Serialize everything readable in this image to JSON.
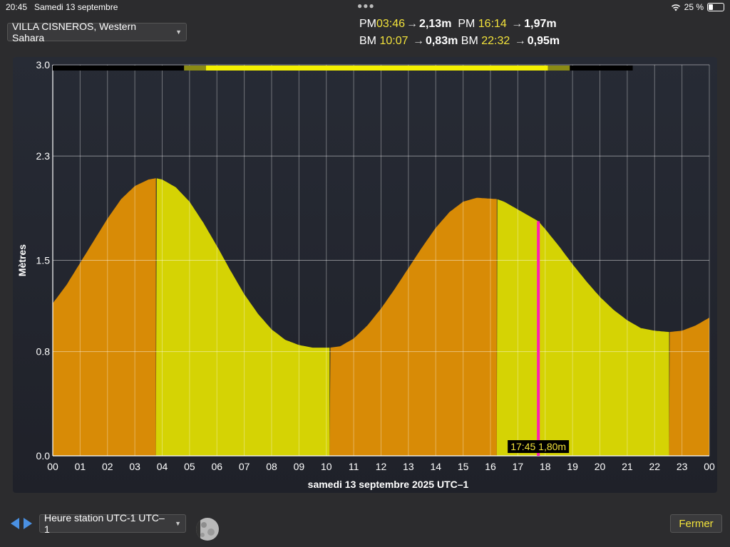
{
  "status_bar": {
    "time": "20:45",
    "date": "Samedi 13 septembre",
    "battery": "25 %",
    "battery_level": 0.25
  },
  "location": {
    "label": "VILLA CISNEROS, Western Sahara"
  },
  "tides": [
    [
      {
        "type": "PM",
        "time": "03:46",
        "height": "2,13m"
      },
      {
        "type": "PM",
        "time": "16:14",
        "height": "1,97m"
      }
    ],
    [
      {
        "type": "BM",
        "time": "10:07",
        "height": "0,83m"
      },
      {
        "type": "BM",
        "time": "22:32",
        "height": "0,95m"
      }
    ]
  ],
  "chart_data": {
    "type": "area",
    "title": "",
    "xlabel": "samedi 13 septembre 2025 UTC–1",
    "ylabel": "Mètres",
    "x_ticks": [
      "00",
      "01",
      "02",
      "03",
      "04",
      "05",
      "06",
      "07",
      "08",
      "09",
      "10",
      "11",
      "12",
      "13",
      "14",
      "15",
      "16",
      "17",
      "18",
      "19",
      "20",
      "21",
      "22",
      "23",
      "00"
    ],
    "x_range": [
      0,
      24
    ],
    "y_ticks": [
      "0.0",
      "0.8",
      "1.5",
      "2.3",
      "3.0"
    ],
    "ylim": [
      0,
      3.0
    ],
    "grid": true,
    "series": [
      {
        "x": [
          0,
          0.5,
          1,
          1.5,
          2,
          2.5,
          3,
          3.5,
          3.77,
          4,
          4.5,
          5,
          5.5,
          6,
          6.5,
          7,
          7.5,
          8,
          8.5,
          9,
          9.5,
          10.12,
          10.5,
          11,
          11.5,
          12,
          12.5,
          13,
          13.5,
          14,
          14.5,
          15,
          15.5,
          16.23,
          16.5,
          17,
          17.5,
          17.75,
          18,
          18.5,
          19,
          19.5,
          20,
          20.5,
          21,
          21.5,
          22,
          22.53,
          23,
          23.5,
          24
        ],
        "y": [
          1.17,
          1.31,
          1.48,
          1.65,
          1.82,
          1.97,
          2.07,
          2.12,
          2.13,
          2.12,
          2.06,
          1.95,
          1.79,
          1.61,
          1.42,
          1.24,
          1.09,
          0.97,
          0.89,
          0.85,
          0.83,
          0.83,
          0.84,
          0.9,
          1.0,
          1.13,
          1.28,
          1.44,
          1.6,
          1.75,
          1.87,
          1.95,
          1.98,
          1.97,
          1.95,
          1.89,
          1.83,
          1.8,
          1.74,
          1.61,
          1.47,
          1.34,
          1.22,
          1.12,
          1.04,
          0.98,
          0.96,
          0.95,
          0.96,
          1.0,
          1.06
        ]
      }
    ],
    "rising_color": "#d88b06",
    "falling_color": "#d5d304",
    "turning_points": [
      3.77,
      10.12,
      16.23,
      22.53
    ],
    "daylight_bar": {
      "night_color": "#000000",
      "twilight_color": "#8a8a15",
      "day_color": "#f4f000",
      "segments": [
        {
          "start": 0,
          "end": 4.8,
          "kind": "night"
        },
        {
          "start": 4.8,
          "end": 5.6,
          "kind": "twilight"
        },
        {
          "start": 5.6,
          "end": 18.1,
          "kind": "day"
        },
        {
          "start": 18.1,
          "end": 18.9,
          "kind": "twilight"
        },
        {
          "start": 18.9,
          "end": 21.2,
          "kind": "night"
        }
      ]
    },
    "current_marker": {
      "x": 17.75,
      "y": 1.8,
      "label": "17:45 1,80m",
      "color": "#ff1fb4"
    }
  },
  "bottom_bar": {
    "timezone_select": "Heure station UTC-1 UTC–1",
    "close_button": "Fermer",
    "moon_icon": "moon-phase-icon"
  }
}
